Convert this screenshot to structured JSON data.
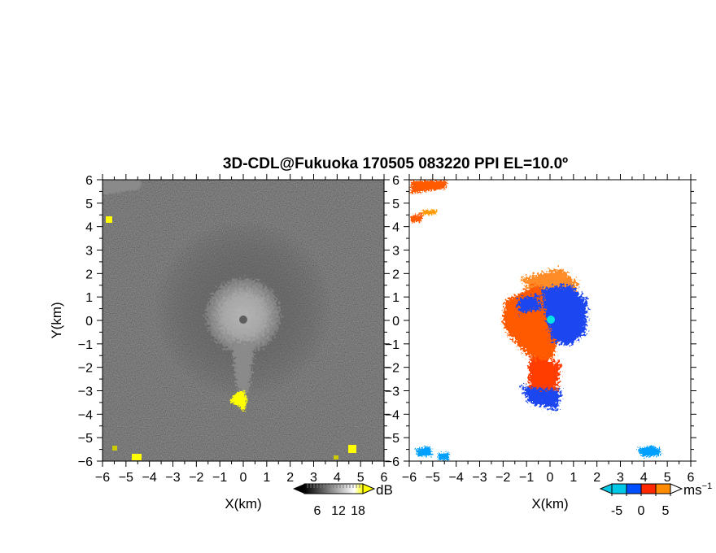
{
  "chart_data": {
    "title": "3D-CDL@Fukuoka 170505 083220 PPI EL=10.0º",
    "panels": [
      {
        "id": "reflectivity",
        "type": "heatmap",
        "xlabel": "X(km)",
        "ylabel": "Y(km)",
        "xlim": [
          -6,
          6
        ],
        "ylim": [
          -6,
          6
        ],
        "x_ticks": [
          -6,
          -5,
          -4,
          -3,
          -2,
          -1,
          0,
          1,
          2,
          3,
          4,
          5,
          6
        ],
        "y_ticks": [
          -6,
          -5,
          -4,
          -3,
          -2,
          -1,
          0,
          1,
          2,
          3,
          4,
          5,
          6
        ],
        "colorbar": {
          "unit": "dB",
          "ticks": [
            6,
            12,
            18
          ],
          "colors": [
            "#000000",
            "#ffffff",
            "#ffff00"
          ]
        },
        "features": [
          {
            "kind": "echo-core",
            "center": [
              0,
              0.2
            ],
            "radius_km": 1.4,
            "level": "bright"
          },
          {
            "kind": "tail",
            "from": [
              0,
              -1.5
            ],
            "to": [
              0,
              -3.5
            ],
            "level": "medium"
          },
          {
            "kind": "strong-echo",
            "color": "#ffff00",
            "at": [
              0,
              -3.5
            ]
          },
          {
            "kind": "strong-echo",
            "color": "#ffff00",
            "at": [
              -5.8,
              4.2
            ]
          },
          {
            "kind": "strong-echo",
            "color": "#ffff00",
            "at": [
              -4.6,
              -5.7
            ]
          },
          {
            "kind": "strong-echo",
            "color": "#ffff00",
            "at": [
              4.6,
              -5.4
            ]
          }
        ]
      },
      {
        "id": "velocity",
        "type": "heatmap",
        "xlabel": "X(km)",
        "ylabel": "",
        "xlim": [
          -6,
          6
        ],
        "ylim": [
          -6,
          6
        ],
        "x_ticks": [
          -6,
          -5,
          -4,
          -3,
          -2,
          -1,
          0,
          1,
          2,
          3,
          4,
          5,
          6
        ],
        "y_ticks": [
          -6,
          -5,
          -4,
          -3,
          -2,
          -1,
          0,
          1,
          2,
          3,
          4,
          5,
          6
        ],
        "colorbar": {
          "unit": "ms",
          "unit_exponent": "−1",
          "ticks": [
            -5,
            0,
            5
          ],
          "colors": [
            "#00c8e6",
            "#0050ff",
            "#ff2800",
            "#ff8c00"
          ]
        },
        "features": [
          {
            "kind": "receding",
            "color": "#ff5a00",
            "center": [
              -0.6,
              0
            ]
          },
          {
            "kind": "approaching",
            "color": "#1e46f0",
            "center": [
              0.9,
              0.3
            ]
          },
          {
            "kind": "radar-site",
            "color": "#00e6e6",
            "at": [
              0,
              0
            ]
          }
        ]
      }
    ]
  },
  "icons": {
    "colorbar_left_arrow": "left-arrow-icon",
    "colorbar_right_arrow": "right-arrow-icon"
  }
}
